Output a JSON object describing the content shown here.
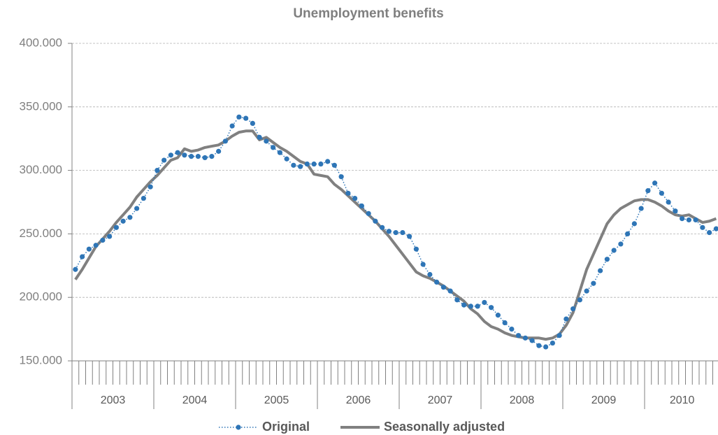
{
  "chart_data": {
    "type": "line",
    "title": "Unemployment  benefits",
    "categories": [
      null,
      null,
      null,
      null,
      null,
      null,
      null,
      null,
      null,
      null,
      null,
      null,
      null,
      null,
      null,
      null,
      null,
      null,
      null,
      null,
      null,
      null,
      null,
      null,
      null,
      null,
      null,
      null,
      null,
      null,
      null,
      null,
      null,
      null,
      null,
      null,
      null,
      null,
      null,
      null,
      null,
      null,
      null,
      null,
      null,
      null,
      null,
      null,
      null,
      null,
      null,
      null,
      null,
      null,
      null,
      null,
      null,
      null,
      null,
      null,
      null,
      null,
      null,
      null,
      null,
      null,
      null,
      null,
      null,
      null,
      null,
      null,
      null,
      null,
      null,
      null,
      null,
      null,
      null,
      null,
      null,
      null,
      null,
      null,
      null,
      null,
      null,
      null,
      null,
      null,
      null,
      null,
      null,
      null,
      null
    ],
    "category_groups": [
      {
        "label": "2003",
        "count": 12
      },
      {
        "label": "2004",
        "count": 12
      },
      {
        "label": "2005",
        "count": 12
      },
      {
        "label": "2006",
        "count": 12
      },
      {
        "label": "2007",
        "count": 12
      },
      {
        "label": "2008",
        "count": 12
      },
      {
        "label": "2009",
        "count": 12
      },
      {
        "label": "2010",
        "count": 11
      }
    ],
    "series": [
      {
        "name": "Original",
        "color": "#2e75b6",
        "style": "dotted-markers",
        "values": [
          222000,
          232000,
          238000,
          241000,
          245000,
          248000,
          255000,
          260000,
          263000,
          270000,
          278000,
          287000,
          300000,
          308000,
          312000,
          314000,
          312000,
          311000,
          311000,
          310000,
          311000,
          315000,
          323000,
          335000,
          342000,
          341000,
          337000,
          326000,
          323000,
          318000,
          314000,
          309000,
          304000,
          303000,
          305000,
          305000,
          305000,
          307000,
          304000,
          295000,
          282000,
          278000,
          272000,
          266000,
          260000,
          255000,
          252000,
          251000,
          251000,
          248000,
          238000,
          226000,
          218000,
          212000,
          208000,
          205000,
          198000,
          194000,
          193000,
          193000,
          196000,
          192000,
          186000,
          180000,
          175000,
          170000,
          168000,
          166000,
          162000,
          161000,
          164000,
          170000,
          183000,
          191000,
          198000,
          205000,
          211000,
          221000,
          230000,
          237000,
          242000,
          250000,
          258000,
          270000,
          284000,
          290000,
          282000,
          275000,
          268000,
          262000,
          261000,
          261000,
          255000,
          251000,
          254000
        ]
      },
      {
        "name": "Seasonally adjusted",
        "color": "#808080",
        "style": "solid",
        "values": [
          214000,
          222000,
          231000,
          240000,
          246000,
          252000,
          259000,
          265000,
          271000,
          279000,
          285000,
          291000,
          296000,
          302000,
          308000,
          310000,
          317000,
          315000,
          316000,
          318000,
          319000,
          320000,
          323000,
          327000,
          330000,
          331000,
          331000,
          324000,
          326000,
          322000,
          318000,
          315000,
          311000,
          307000,
          305000,
          297000,
          296000,
          295000,
          289000,
          285000,
          280000,
          275000,
          270000,
          265000,
          260000,
          254000,
          248000,
          241000,
          234000,
          227000,
          220000,
          217000,
          215000,
          212000,
          209000,
          205000,
          201000,
          197000,
          191000,
          187000,
          181000,
          177000,
          175000,
          172000,
          170000,
          169000,
          168000,
          168000,
          168000,
          167000,
          168000,
          171000,
          178000,
          188000,
          205000,
          222000,
          234000,
          246000,
          258000,
          265000,
          270000,
          273000,
          276000,
          277000,
          277000,
          275000,
          272000,
          268000,
          265000,
          264000,
          265000,
          262000,
          259000,
          260000,
          262000
        ]
      }
    ],
    "ylim": [
      150000,
      400000
    ],
    "yticks": [
      {
        "value": 150000,
        "label": "150.000"
      },
      {
        "value": 200000,
        "label": "200.000"
      },
      {
        "value": 250000,
        "label": "250.000"
      },
      {
        "value": 300000,
        "label": "300.000"
      },
      {
        "value": 350000,
        "label": "350.000"
      },
      {
        "value": 400000,
        "label": "400.000"
      }
    ],
    "grid": true,
    "legend": "bottom"
  }
}
